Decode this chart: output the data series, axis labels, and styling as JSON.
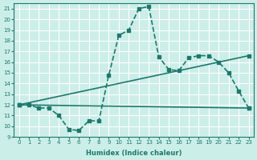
{
  "xlabel": "Humidex (Indice chaleur)",
  "ylabel": "",
  "bg_color": "#cceee8",
  "line_color": "#1a7a6e",
  "grid_color": "#ffffff",
  "xlim": [
    -0.5,
    23.5
  ],
  "ylim": [
    9,
    21.5
  ],
  "yticks": [
    9,
    10,
    11,
    12,
    13,
    14,
    15,
    16,
    17,
    18,
    19,
    20,
    21
  ],
  "xticks": [
    0,
    1,
    2,
    3,
    4,
    5,
    6,
    7,
    8,
    9,
    10,
    11,
    12,
    13,
    14,
    15,
    16,
    17,
    18,
    19,
    20,
    21,
    22,
    23
  ],
  "series1_x": [
    0,
    1,
    2,
    3,
    4,
    5,
    6,
    7,
    8,
    9,
    10,
    11,
    12,
    13,
    14,
    15,
    16,
    17,
    18,
    19,
    20,
    21,
    22,
    23
  ],
  "series1_y": [
    12,
    12,
    11.7,
    11.7,
    11.0,
    9.7,
    9.6,
    10.5,
    10.5,
    14.8,
    18.5,
    19.0,
    21.0,
    21.2,
    16.5,
    15.3,
    15.2,
    16.4,
    16.6,
    16.6,
    16.0,
    15.0,
    13.3,
    11.7
  ],
  "series2_x": [
    0,
    23
  ],
  "series2_y": [
    12,
    11.7
  ],
  "series3_x": [
    0,
    23
  ],
  "series3_y": [
    12,
    16.6
  ],
  "marker_size": 3,
  "line_width": 1.2
}
